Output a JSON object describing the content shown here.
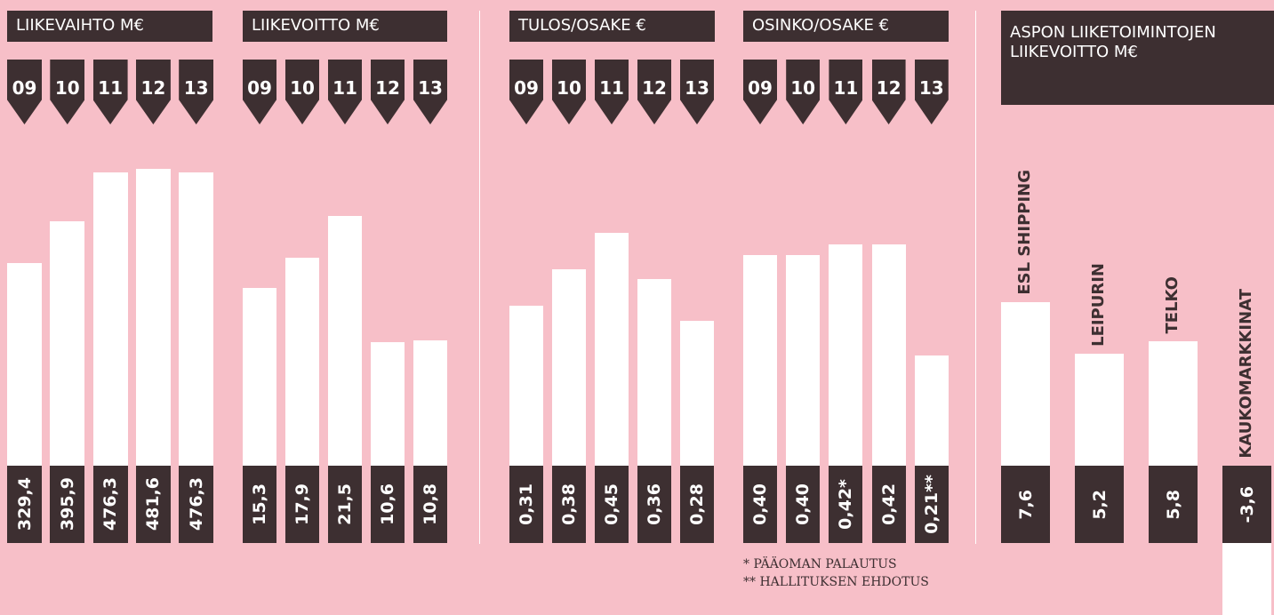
{
  "chart_data": [
    {
      "type": "bar",
      "title": "LIIKEVAIHTO M€",
      "categories": [
        "09",
        "10",
        "11",
        "12",
        "13"
      ],
      "values": [
        329.4,
        395.9,
        476.3,
        481.6,
        476.3
      ],
      "value_labels": [
        "329,4",
        "395,9",
        "476,3",
        "481,6",
        "476,3"
      ]
    },
    {
      "type": "bar",
      "title": "LIIKEVOITTO M€",
      "categories": [
        "09",
        "10",
        "11",
        "12",
        "13"
      ],
      "values": [
        15.3,
        17.9,
        21.5,
        10.6,
        10.8
      ],
      "value_labels": [
        "15,3",
        "17,9",
        "21,5",
        "10,6",
        "10,8"
      ]
    },
    {
      "type": "bar",
      "title": "TULOS/OSAKE €",
      "categories": [
        "09",
        "10",
        "11",
        "12",
        "13"
      ],
      "values": [
        0.31,
        0.38,
        0.45,
        0.36,
        0.28
      ],
      "value_labels": [
        "0,31",
        "0,38",
        "0,45",
        "0,36",
        "0,28"
      ]
    },
    {
      "type": "bar",
      "title": "OSINKO/OSAKE €",
      "categories": [
        "09",
        "10",
        "11",
        "12",
        "13"
      ],
      "values": [
        0.4,
        0.4,
        0.42,
        0.42,
        0.21
      ],
      "value_labels": [
        "0,40",
        "0,40",
        "0,42*",
        "0,42",
        "0,21**"
      ],
      "annotations": [
        "* PÄÄOMAN PALAUTUS",
        "** HALLITUKSEN EHDOTUS"
      ]
    },
    {
      "type": "bar",
      "title": "ASPON LIIKETOIMINTOJEN LIIKEVOITTO M€",
      "categories": [
        "ESL SHIPPING",
        "LEIPURIN",
        "TELKO",
        "KAUKOMARKKINAT"
      ],
      "values": [
        7.6,
        5.2,
        5.8,
        -3.6
      ],
      "value_labels": [
        "7,6",
        "5,2",
        "5,8",
        "-3,6"
      ]
    }
  ]
}
